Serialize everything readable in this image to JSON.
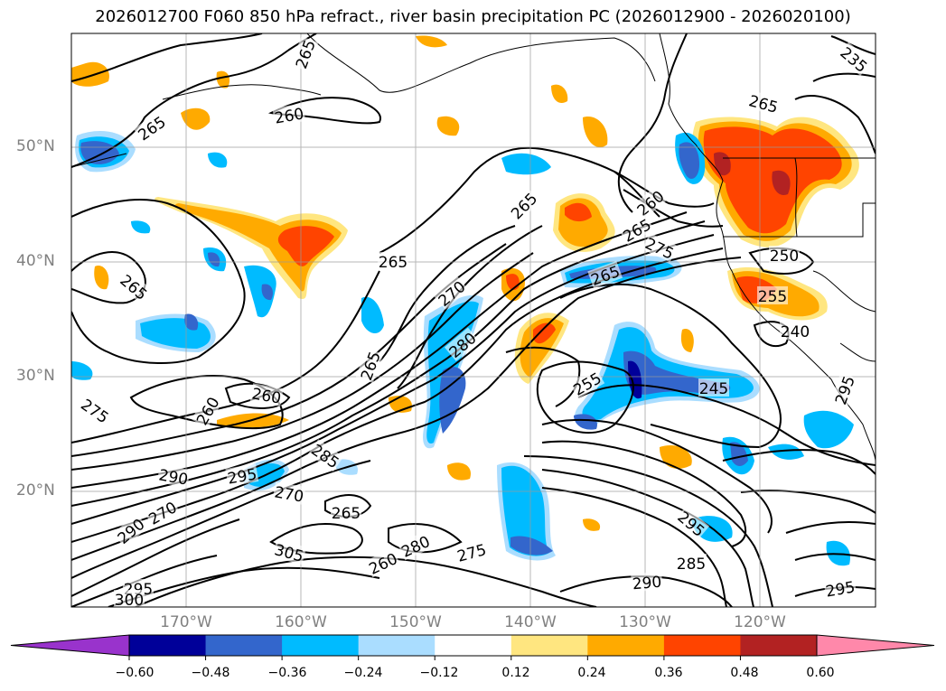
{
  "title": "2026012700 F060 850 hPa refract., river basin precipitation PC (2026012900 - 2026020100)",
  "map": {
    "lat_labels": [
      "50°N",
      "40°N",
      "30°N",
      "20°N"
    ],
    "lon_labels": [
      "170°W",
      "160°W",
      "150°W",
      "140°W",
      "130°W",
      "120°W"
    ],
    "lat_range": [
      10,
      60
    ],
    "lon_range": [
      -180,
      -110
    ],
    "contour_labels": [
      "265",
      "260",
      "265",
      "265",
      "265",
      "260",
      "265",
      "275",
      "265",
      "265",
      "270",
      "280",
      "265",
      "260",
      "255",
      "250",
      "245",
      "240",
      "255",
      "260",
      "275",
      "285",
      "290",
      "295",
      "270",
      "265",
      "270",
      "290",
      "295",
      "300",
      "305",
      "260",
      "280",
      "275",
      "295",
      "285",
      "290",
      "295",
      "295",
      "235",
      "265"
    ]
  },
  "colorbar": {
    "ticks": [
      "−0.60",
      "−0.48",
      "−0.36",
      "−0.24",
      "−0.12",
      "0.12",
      "0.24",
      "0.36",
      "0.48",
      "0.60"
    ],
    "colors": [
      "#9933cc",
      "#000099",
      "#3366cc",
      "#00bbff",
      "#aaddff",
      "#ffffff",
      "#ffe680",
      "#ffaa00",
      "#ff4400",
      "#b22222",
      "#ff88aa"
    ]
  }
}
